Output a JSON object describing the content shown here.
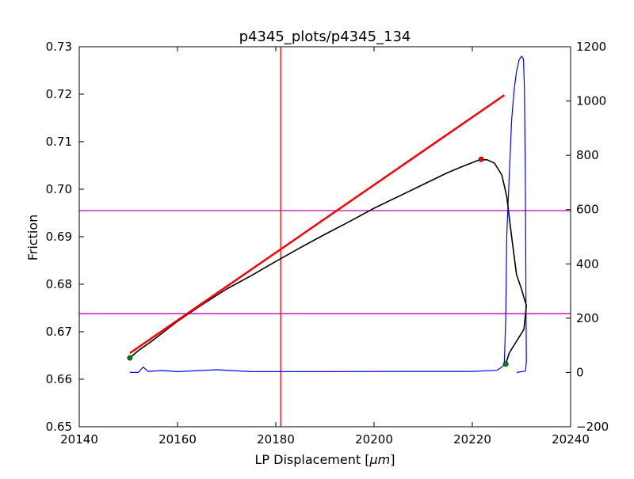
{
  "chart_data": {
    "type": "line",
    "title": "p4345_plots/p4345_134",
    "xlabel_main": "LP Displacement [",
    "xlabel_unit": "μm",
    "xlabel_close": "]",
    "ylabel": "Friction",
    "xlim": [
      20140,
      20240
    ],
    "ylim": [
      0.65,
      0.73
    ],
    "y2lim": [
      -200,
      1200
    ],
    "x_ticks": [
      "20140",
      "20160",
      "20180",
      "20200",
      "20220",
      "20240"
    ],
    "y_ticks": [
      "0.65",
      "0.66",
      "0.67",
      "0.68",
      "0.69",
      "0.70",
      "0.71",
      "0.72",
      "0.73"
    ],
    "y2_ticks": [
      "−200",
      "0",
      "200",
      "400",
      "600",
      "800",
      "1000",
      "1200"
    ],
    "grid": false,
    "colors": {
      "friction": "#000000",
      "fit": "#ff0000",
      "secondary": "#0000ff",
      "vline": "#ff0000",
      "hlines": "#bf00bf",
      "marker_green": "#008000",
      "marker_red": "#ff0000"
    },
    "vline_x": 20181,
    "hlines_y": [
      0.6955,
      0.6738
    ],
    "fit_line": {
      "x": [
        20150.3,
        20226.5
      ],
      "y": [
        0.6655,
        0.7198
      ]
    },
    "friction": {
      "x": [
        20150.3,
        20152,
        20155,
        20160,
        20165,
        20170,
        20175,
        20180,
        20185,
        20190,
        20195,
        20200,
        20205,
        20210,
        20215,
        20218,
        20221.5,
        20223,
        20224.5,
        20226,
        20227,
        20228,
        20229,
        20230,
        20231,
        20230.5,
        20229,
        20227.5,
        20226.8
      ],
      "y": [
        0.6645,
        0.666,
        0.6682,
        0.6722,
        0.6757,
        0.679,
        0.6818,
        0.6848,
        0.6877,
        0.6905,
        0.6932,
        0.696,
        0.6985,
        0.701,
        0.7035,
        0.7048,
        0.7062,
        0.7062,
        0.7055,
        0.703,
        0.6985,
        0.69,
        0.682,
        0.679,
        0.6755,
        0.6705,
        0.668,
        0.6655,
        0.6632
      ]
    },
    "secondary": {
      "x": [
        20150.3,
        20152,
        20153,
        20154,
        20157,
        20160,
        20168,
        20175,
        20190,
        20205,
        20220,
        20225,
        20226,
        20226.5,
        20226.8,
        20227,
        20227.5,
        20228,
        20228.5,
        20229,
        20229.5,
        20230,
        20230.4,
        20230.6,
        20230.8,
        20230.9,
        20231,
        20230.8,
        20229
      ],
      "y": [
        0,
        0,
        20,
        4,
        7,
        3,
        10,
        3,
        3,
        4,
        4,
        8,
        20,
        30,
        200,
        500,
        720,
        930,
        1040,
        1110,
        1150,
        1165,
        1155,
        1050,
        700,
        300,
        40,
        5,
        0
      ]
    },
    "markers": [
      {
        "x": 20150.3,
        "y": 0.6645,
        "color": "#008000"
      },
      {
        "x": 20226.8,
        "y": 0.6632,
        "color": "#008000"
      },
      {
        "x": 20221.8,
        "y": 0.7063,
        "color": "#ff0000"
      }
    ]
  }
}
